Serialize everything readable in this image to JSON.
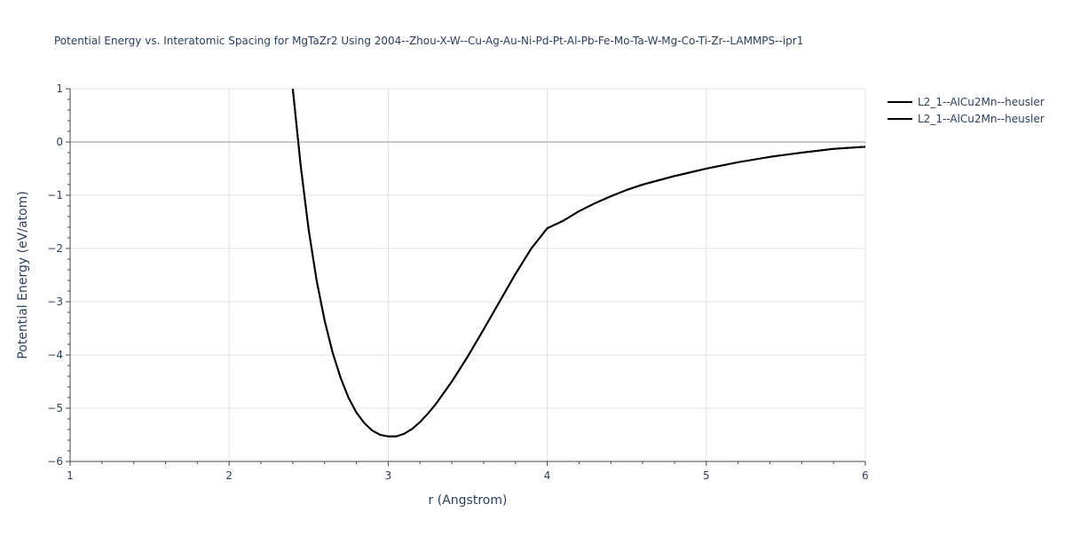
{
  "chart_data": {
    "type": "line",
    "title": "Potential Energy vs. Interatomic Spacing for MgTaZr2 Using 2004--Zhou-X-W--Cu-Ag-Au-Ni-Pd-Pt-Al-Pb-Fe-Mo-Ta-W-Mg-Co-Ti-Zr--LAMMPS--ipr1",
    "xlabel": "r (Angstrom)",
    "ylabel": "Potential Energy (eV/atom)",
    "xlim": [
      1,
      6
    ],
    "ylim": [
      -6,
      1
    ],
    "x_ticks": [
      1,
      2,
      3,
      4,
      5,
      6
    ],
    "x_tick_labels": [
      "1",
      "2",
      "3",
      "4",
      "5",
      "6"
    ],
    "y_ticks": [
      1,
      0,
      -1,
      -2,
      -3,
      -4,
      -5,
      -6
    ],
    "y_tick_labels": [
      "1",
      "0",
      "−1",
      "−2",
      "−3",
      "−4",
      "−5",
      "−6"
    ],
    "grid": true,
    "zero_line": true,
    "legend_position": "top-right",
    "series_color": "#000000",
    "series": [
      {
        "name": "L2_1--AlCu2Mn--heusler",
        "x": [
          2.4,
          2.45,
          2.5,
          2.55,
          2.6,
          2.65,
          2.7,
          2.75,
          2.8,
          2.85,
          2.9,
          2.95,
          3.0,
          3.05,
          3.1,
          3.15,
          3.2,
          3.25,
          3.3,
          3.4,
          3.5,
          3.6,
          3.7,
          3.8,
          3.9,
          4.0,
          4.1,
          4.2,
          4.3,
          4.4,
          4.5,
          4.6,
          4.8,
          5.0,
          5.2,
          5.4,
          5.6,
          5.8,
          6.0
        ],
        "y": [
          1.0,
          -0.45,
          -1.65,
          -2.6,
          -3.35,
          -3.95,
          -4.42,
          -4.8,
          -5.08,
          -5.28,
          -5.42,
          -5.5,
          -5.53,
          -5.53,
          -5.48,
          -5.39,
          -5.26,
          -5.1,
          -4.92,
          -4.5,
          -4.03,
          -3.52,
          -3.0,
          -2.48,
          -2.0,
          -1.62,
          -1.48,
          -1.3,
          -1.15,
          -1.02,
          -0.9,
          -0.8,
          -0.64,
          -0.5,
          -0.38,
          -0.28,
          -0.2,
          -0.13,
          -0.09
        ]
      },
      {
        "name": "L2_1--AlCu2Mn--heusler",
        "x": [
          2.4,
          2.45,
          2.5,
          2.55,
          2.6,
          2.65,
          2.7,
          2.75,
          2.8,
          2.85,
          2.9,
          2.95,
          3.0,
          3.05,
          3.1,
          3.15,
          3.2,
          3.25,
          3.3,
          3.4,
          3.5,
          3.6,
          3.7,
          3.8,
          3.9,
          4.0,
          4.1,
          4.2,
          4.3,
          4.4,
          4.5,
          4.6,
          4.8,
          5.0,
          5.2,
          5.4,
          5.6,
          5.8,
          6.0
        ],
        "y": [
          1.0,
          -0.45,
          -1.65,
          -2.6,
          -3.35,
          -3.95,
          -4.42,
          -4.8,
          -5.08,
          -5.28,
          -5.42,
          -5.5,
          -5.53,
          -5.53,
          -5.48,
          -5.39,
          -5.26,
          -5.1,
          -4.92,
          -4.5,
          -4.03,
          -3.52,
          -3.0,
          -2.48,
          -2.0,
          -1.62,
          -1.48,
          -1.3,
          -1.15,
          -1.02,
          -0.9,
          -0.8,
          -0.64,
          -0.5,
          -0.38,
          -0.28,
          -0.2,
          -0.13,
          -0.09
        ]
      }
    ]
  }
}
